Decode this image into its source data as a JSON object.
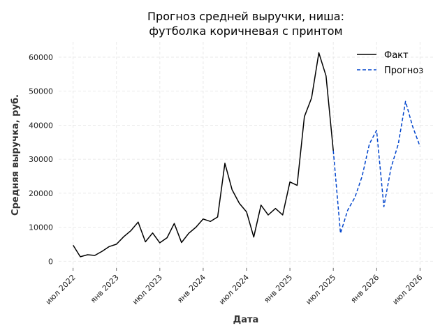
{
  "chart_data": {
    "type": "line",
    "title": [
      "Прогноз средней выручки, ниша:",
      "футболка коричневая с принтом"
    ],
    "xlabel": "Дата",
    "ylabel": "Средняя выручка, руб.",
    "ylim": [
      -2000,
      64500
    ],
    "y_ticks": [
      0,
      10000,
      20000,
      30000,
      40000,
      50000,
      60000
    ],
    "x_ticks": [
      {
        "date": "2022-07",
        "label": "июл 2022"
      },
      {
        "date": "2023-01",
        "label": "янв 2023"
      },
      {
        "date": "2023-07",
        "label": "июл 2023"
      },
      {
        "date": "2024-01",
        "label": "янв 2024"
      },
      {
        "date": "2024-07",
        "label": "июл 2024"
      },
      {
        "date": "2025-01",
        "label": "янв 2025"
      },
      {
        "date": "2025-07",
        "label": "июл 2025"
      },
      {
        "date": "2026-01",
        "label": "янв 2026"
      },
      {
        "date": "2026-07",
        "label": "июл 2026"
      }
    ],
    "xlim": [
      "2022-05",
      "2026-09"
    ],
    "grid": true,
    "legend_position": "top-right",
    "series": [
      {
        "name": "Факт",
        "color": "#000000",
        "dash": "solid",
        "points": [
          [
            "2022-07",
            4700
          ],
          [
            "2022-08",
            1300
          ],
          [
            "2022-09",
            1900
          ],
          [
            "2022-10",
            1700
          ],
          [
            "2022-11",
            2900
          ],
          [
            "2022-12",
            4300
          ],
          [
            "2023-01",
            5000
          ],
          [
            "2023-02",
            7200
          ],
          [
            "2023-03",
            9000
          ],
          [
            "2023-04",
            11500
          ],
          [
            "2023-05",
            5700
          ],
          [
            "2023-06",
            8300
          ],
          [
            "2023-07",
            5400
          ],
          [
            "2023-08",
            6900
          ],
          [
            "2023-09",
            11100
          ],
          [
            "2023-10",
            5500
          ],
          [
            "2023-11",
            8200
          ],
          [
            "2023-12",
            10000
          ],
          [
            "2024-01",
            12400
          ],
          [
            "2024-02",
            11700
          ],
          [
            "2024-03",
            13000
          ],
          [
            "2024-04",
            28800
          ],
          [
            "2024-05",
            21000
          ],
          [
            "2024-06",
            17000
          ],
          [
            "2024-07",
            14500
          ],
          [
            "2024-08",
            7100
          ],
          [
            "2024-09",
            16500
          ],
          [
            "2024-10",
            13600
          ],
          [
            "2024-11",
            15500
          ],
          [
            "2024-12",
            13600
          ],
          [
            "2025-01",
            23300
          ],
          [
            "2025-02",
            22300
          ],
          [
            "2025-03",
            42500
          ],
          [
            "2025-04",
            48000
          ],
          [
            "2025-05",
            61300
          ],
          [
            "2025-06",
            54500
          ],
          [
            "2025-07",
            32500
          ]
        ]
      },
      {
        "name": "Прогноз",
        "color": "#0044cc",
        "dash": "dashed",
        "points": [
          [
            "2025-07",
            32500
          ],
          [
            "2025-08",
            8200
          ],
          [
            "2025-09",
            15000
          ],
          [
            "2025-10",
            18800
          ],
          [
            "2025-11",
            25000
          ],
          [
            "2025-12",
            34500
          ],
          [
            "2026-01",
            38500
          ],
          [
            "2026-02",
            16000
          ],
          [
            "2026-03",
            27500
          ],
          [
            "2026-04",
            34500
          ],
          [
            "2026-05",
            47000
          ],
          [
            "2026-06",
            39500
          ],
          [
            "2026-07",
            33800
          ]
        ]
      }
    ]
  }
}
